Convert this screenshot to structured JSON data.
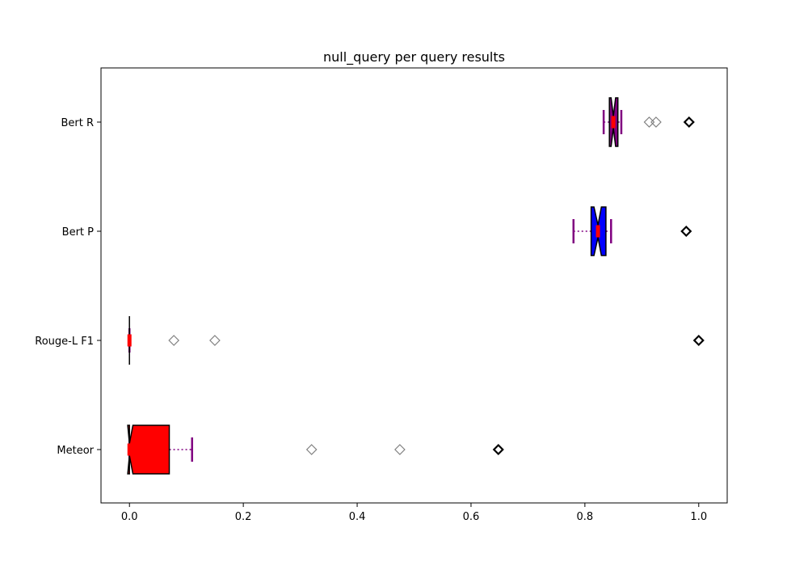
{
  "chart_data": {
    "type": "boxplot",
    "title": "null_query per query results",
    "xlabel": "",
    "ylabel": "",
    "orientation": "horizontal",
    "notched": true,
    "xlim": [
      -0.05,
      1.05
    ],
    "x_ticks": [
      0.0,
      0.2,
      0.4,
      0.6,
      0.8,
      1.0
    ],
    "x_tick_labels": [
      "0.0",
      "0.2",
      "0.4",
      "0.6",
      "0.8",
      "1.0"
    ],
    "grid": false,
    "categories": [
      "Meteor",
      "Rouge-L F1",
      "Bert P",
      "Bert R"
    ],
    "series": [
      {
        "category": "Meteor",
        "box_color": "#ff0000",
        "median_color": "#ff0000",
        "whisker_low": 0.0,
        "q1": 0.0,
        "median": 0.0,
        "q3": 0.07,
        "whisker_high": 0.11,
        "notch_low": -0.003,
        "notch_high": 0.006,
        "outliers": [
          0.32,
          0.475
        ],
        "max_marker": 0.648
      },
      {
        "category": "Rouge-L F1",
        "box_color": "#ff0000",
        "median_color": "#ff0000",
        "whisker_low": 0.0,
        "q1": 0.0,
        "median": 0.0,
        "q3": 0.0,
        "whisker_high": 0.0,
        "notch_low": 0.0,
        "notch_high": 0.0,
        "outliers": [
          0.078,
          0.15
        ],
        "max_marker": 1.0
      },
      {
        "category": "Bert P",
        "box_color": "#0000ff",
        "median_color": "#ff0000",
        "whisker_low": 0.78,
        "q1": 0.811,
        "median": 0.823,
        "q3": 0.837,
        "whisker_high": 0.846,
        "notch_low": 0.816,
        "notch_high": 0.829,
        "outliers": [],
        "max_marker": 0.978
      },
      {
        "category": "Bert R",
        "box_color": "#800080",
        "median_color": "#ff0000",
        "whisker_low": 0.833,
        "q1": 0.843,
        "median": 0.85,
        "q3": 0.858,
        "whisker_high": 0.864,
        "notch_low": 0.846,
        "notch_high": 0.854,
        "outliers": [
          0.913,
          0.925
        ],
        "max_marker": 0.983
      }
    ]
  }
}
